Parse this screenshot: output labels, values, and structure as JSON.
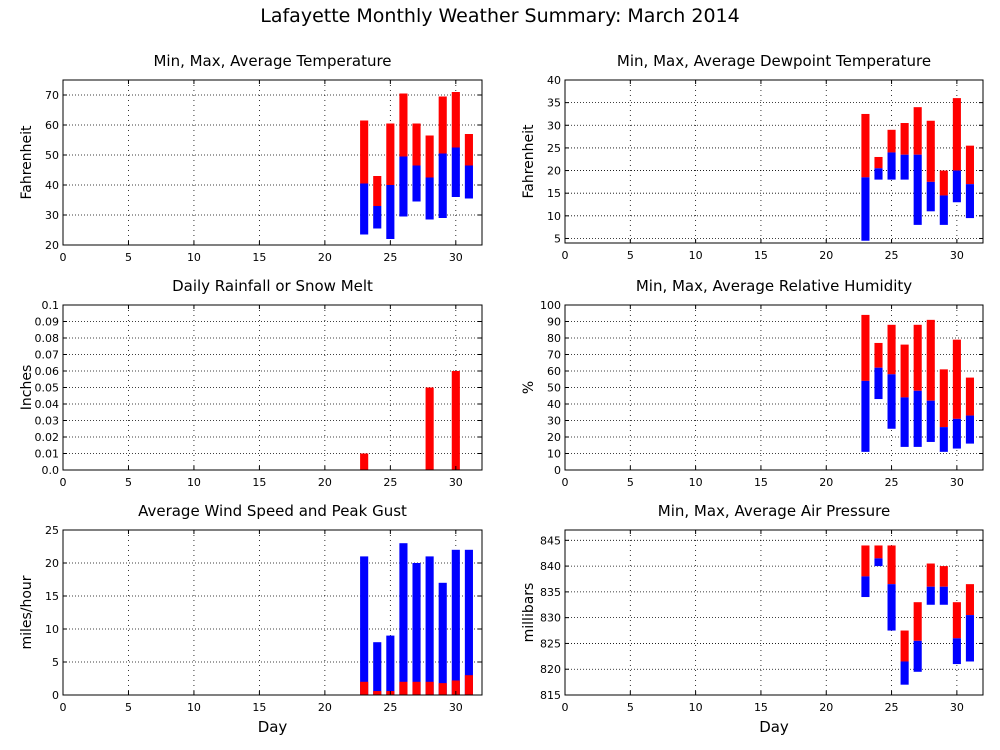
{
  "page": {
    "title": "Lafayette Monthly Weather Summary: March 2014",
    "xaxis_label": "Day"
  },
  "colors": {
    "max_bar": "#ff0000",
    "min_bar": "#0000ff",
    "frame": "#000000",
    "grid": "#000000"
  },
  "chart_data": [
    {
      "type": "bar",
      "title": "Min, Max, Average Temperature",
      "ylabel": "Fahrenheit",
      "xlim": [
        0,
        32
      ],
      "ylim": [
        20,
        75
      ],
      "xticks": [
        0,
        5,
        10,
        15,
        20,
        25,
        30
      ],
      "yticks": [
        20,
        30,
        40,
        50,
        60,
        70
      ],
      "grid": "horizontal",
      "series_kind": "range",
      "days": [
        23,
        24,
        25,
        26,
        27,
        28,
        29,
        30,
        31
      ],
      "min": [
        23.5,
        25.5,
        22,
        29.5,
        34.5,
        28.5,
        29,
        36,
        35.5
      ],
      "avg": [
        40.5,
        33,
        40,
        49.5,
        46.5,
        42.5,
        50.5,
        52.5,
        46.5
      ],
      "max": [
        61.5,
        43,
        60.5,
        70.5,
        60.5,
        56.5,
        69.5,
        71,
        57
      ]
    },
    {
      "type": "bar",
      "title": "Min, Max, Average Dewpoint Temperature",
      "ylabel": "Fahrenheit",
      "xlim": [
        0,
        32
      ],
      "ylim": [
        4,
        40
      ],
      "xticks": [
        0,
        5,
        10,
        15,
        20,
        25,
        30
      ],
      "yticks": [
        5,
        10,
        15,
        20,
        25,
        30,
        35,
        40
      ],
      "grid": "horizontal",
      "series_kind": "range",
      "days": [
        23,
        24,
        25,
        26,
        27,
        28,
        29,
        30,
        31
      ],
      "min": [
        4.5,
        18,
        18,
        18,
        8,
        11,
        8,
        13,
        9.5
      ],
      "avg": [
        18.5,
        20.5,
        24,
        23.5,
        23.5,
        17.5,
        14.5,
        20,
        17
      ],
      "max": [
        32.5,
        23,
        29,
        30.5,
        34,
        31,
        20,
        36,
        25.5
      ]
    },
    {
      "type": "bar",
      "title": "Daily Rainfall or Snow Melt",
      "ylabel": "Inches",
      "xlim": [
        0,
        32
      ],
      "ylim": [
        0,
        0.1
      ],
      "xticks": [
        0,
        5,
        10,
        15,
        20,
        25,
        30
      ],
      "yticks": [
        0.0,
        0.01,
        0.02,
        0.03,
        0.04,
        0.05,
        0.06,
        0.07,
        0.08,
        0.09,
        0.1
      ],
      "ytick_labels": [
        "0.0",
        "0.01",
        "0.02",
        "0.03",
        "0.04",
        "0.05",
        "0.06",
        "0.07",
        "0.08",
        "0.09",
        "0.1"
      ],
      "grid": "horizontal",
      "series_kind": "single",
      "days": [
        23,
        28,
        30
      ],
      "values": [
        0.01,
        0.05,
        0.06
      ]
    },
    {
      "type": "bar",
      "title": "Min, Max, Average Relative Humidity",
      "ylabel": "%",
      "xlim": [
        0,
        32
      ],
      "ylim": [
        0,
        100
      ],
      "xticks": [
        0,
        5,
        10,
        15,
        20,
        25,
        30
      ],
      "yticks": [
        0,
        10,
        20,
        30,
        40,
        50,
        60,
        70,
        80,
        90,
        100
      ],
      "grid": "horizontal",
      "series_kind": "range",
      "days": [
        23,
        24,
        25,
        26,
        27,
        28,
        29,
        30,
        31
      ],
      "min": [
        11,
        43,
        25,
        14,
        14,
        17,
        11,
        13,
        16
      ],
      "avg": [
        54,
        62,
        58,
        44,
        48,
        42,
        26,
        31,
        33
      ],
      "max": [
        94,
        77,
        88,
        76,
        88,
        91,
        61,
        79,
        56
      ]
    },
    {
      "type": "bar",
      "title": "Average Wind Speed and Peak Gust",
      "ylabel": "miles/hour",
      "xlim": [
        0,
        32
      ],
      "ylim": [
        0,
        25
      ],
      "xticks": [
        0,
        5,
        10,
        15,
        20,
        25,
        30
      ],
      "yticks": [
        0,
        5,
        10,
        15,
        20,
        25
      ],
      "grid": "horizontal",
      "series_kind": "gust",
      "days": [
        23,
        24,
        25,
        26,
        27,
        28,
        29,
        30,
        31
      ],
      "avg": [
        2,
        0.6,
        0.6,
        2,
        2,
        2,
        1.8,
        2.2,
        3
      ],
      "gust": [
        21,
        8,
        9,
        23,
        20,
        21,
        17,
        22,
        22
      ]
    },
    {
      "type": "bar",
      "title": "Min, Max, Average Air Pressure",
      "ylabel": "millibars",
      "xlim": [
        0,
        32
      ],
      "ylim": [
        815,
        847
      ],
      "xticks": [
        0,
        5,
        10,
        15,
        20,
        25,
        30
      ],
      "yticks": [
        815,
        820,
        825,
        830,
        835,
        840,
        845
      ],
      "grid": "horizontal",
      "series_kind": "range",
      "days": [
        23,
        24,
        25,
        26,
        27,
        28,
        29,
        30,
        31
      ],
      "min": [
        834,
        840,
        827.5,
        817,
        819.5,
        832.5,
        832.5,
        821,
        821.5
      ],
      "avg": [
        838,
        841.5,
        836.5,
        821.5,
        825.5,
        836,
        836,
        826,
        830.5
      ],
      "max": [
        844,
        844,
        844,
        827.5,
        833,
        840.5,
        840,
        833,
        836.5
      ]
    }
  ]
}
